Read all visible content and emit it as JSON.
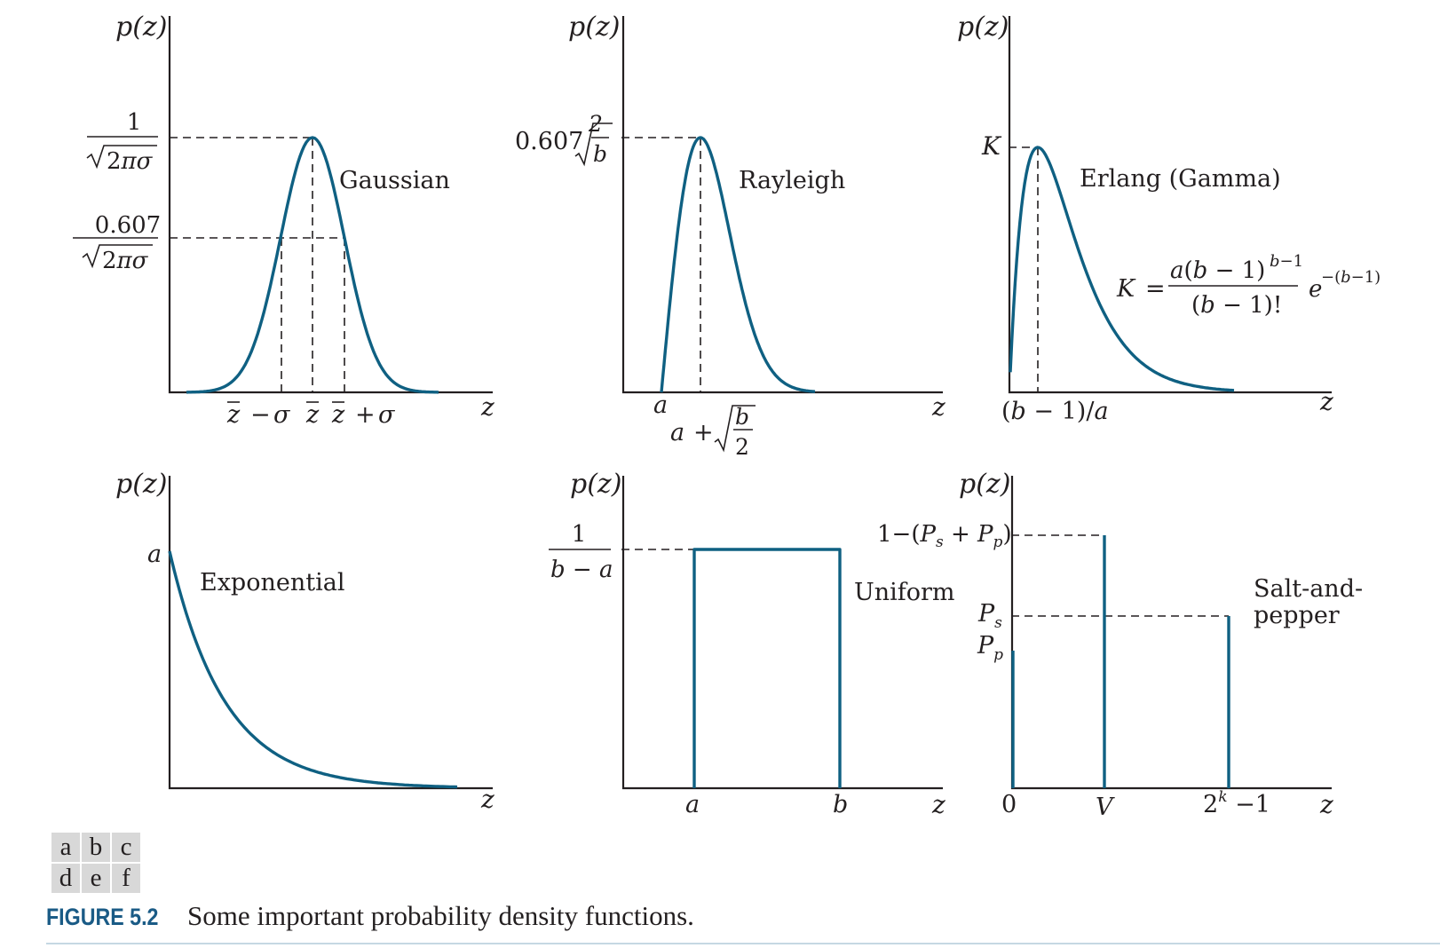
{
  "figure": {
    "number": "FIGURE 5.2",
    "caption": "Some important probability density functions.",
    "panel_letters": [
      "a",
      "b",
      "c",
      "d",
      "e",
      "f"
    ]
  },
  "colors": {
    "curve": "#0f6082",
    "ink": "#231f20",
    "caption_number": "#1a5b86"
  },
  "chart_data": [
    {
      "type": "line",
      "panel": "a",
      "name": "Gaussian",
      "ylabel": "p(z)",
      "xlabel": "z",
      "x_ticks": [
        "z̄ − σ",
        "z̄",
        "z̄ + σ"
      ],
      "y_ticks": [
        "1/√(2πσ)",
        "0.607/√(2πσ)"
      ]
    },
    {
      "type": "line",
      "panel": "b",
      "name": "Rayleigh",
      "ylabel": "p(z)",
      "xlabel": "z",
      "x_ticks": [
        "a",
        "a + √(b/2)"
      ],
      "y_ticks": [
        "0.607√(2/b)"
      ]
    },
    {
      "type": "line",
      "panel": "c",
      "name": "Erlang (Gamma)",
      "ylabel": "p(z)",
      "xlabel": "z",
      "x_ticks": [
        "(b − 1)/a"
      ],
      "y_ticks": [
        "K"
      ],
      "annotation": "K = a(b − 1)^(b−1) / (b − 1)! · e^−(b−1)"
    },
    {
      "type": "line",
      "panel": "d",
      "name": "Exponential",
      "ylabel": "p(z)",
      "xlabel": "z",
      "y_ticks": [
        "a"
      ]
    },
    {
      "type": "line",
      "panel": "e",
      "name": "Uniform",
      "ylabel": "p(z)",
      "xlabel": "z",
      "x_ticks": [
        "a",
        "b"
      ],
      "y_ticks": [
        "1/(b − a)"
      ]
    },
    {
      "type": "bar",
      "panel": "f",
      "name": "Salt-and-pepper",
      "ylabel": "p(z)",
      "xlabel": "z",
      "x_ticks": [
        "0",
        "V",
        "2^k − 1"
      ],
      "y_ticks": [
        "1 − (Ps + Pp)",
        "Ps",
        "Pp"
      ]
    }
  ]
}
